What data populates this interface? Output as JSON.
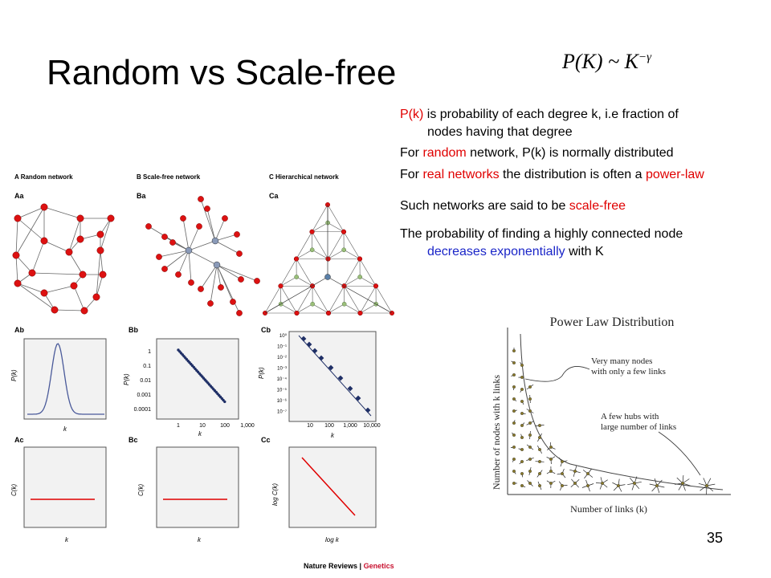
{
  "slide": {
    "title": "Random vs Scale-free",
    "formula": {
      "lhs": "P(K) ~ K",
      "exp": "−γ"
    },
    "page_number": "35"
  },
  "bullets": {
    "b1_red": "P(k)",
    "b1_rest": " is probability of each degree k, i.e fraction of",
    "b1_cont": "nodes having that degree",
    "b2_pre": "For ",
    "b2_red": "random",
    "b2_post": " network, P(k) is normally distributed",
    "b3_pre": "For ",
    "b3_red": "real networks",
    "b3_mid": " the distribution is often a ",
    "b3_red2": "power-law",
    "b4_pre": "Such networks are said to be ",
    "b4_red": "scale-free",
    "b5_pre": "The probability of finding a highly connected node",
    "b5_blue": "decreases exponentially",
    "b5_post": " with K"
  },
  "figure": {
    "col_a": "A  Random network",
    "col_b": "B  Scale-free network",
    "col_c": "C  Hierarchical network",
    "panels": {
      "aa": "Aa",
      "ba": "Ba",
      "ca": "Ca",
      "ab": "Ab",
      "bb": "Bb",
      "cb": "Cb",
      "ac": "Ac",
      "bc": "Bc",
      "cc": "Cc"
    },
    "axes": {
      "k": "k",
      "pk": "P(k)",
      "ck": "C(k)",
      "logck": "log C(k)",
      "logk": "log k"
    },
    "bb_yticks": [
      "1",
      "0.1",
      "0.01",
      "0.001",
      "0.0001"
    ],
    "bb_xticks": [
      "1",
      "10",
      "100",
      "1,000"
    ],
    "cb_yticks": [
      "10⁰",
      "10⁻¹",
      "10⁻²",
      "10⁻³",
      "10⁻⁴",
      "10⁻⁵",
      "10⁻⁶",
      "10⁻⁷"
    ],
    "cb_xticks": [
      "10",
      "100",
      "1,000",
      "10,000"
    ],
    "credit_a": "Nature Reviews | ",
    "credit_b": "Genetics"
  },
  "power_law": {
    "title": "Power Law Distribution",
    "ylabel": "Number of nodes with k links",
    "xlabel": "Number of links (k)",
    "note1_l1": "Very many nodes",
    "note1_l2": "with only a few links",
    "note2_l1": "A few hubs with",
    "note2_l2": "large number of links"
  },
  "colors": {
    "red_node": "#dd1111",
    "blue_dot": "#1f2f66",
    "highlight_red": "#e00000",
    "highlight_blue": "#1a25c8",
    "credit_red": "#c8102e"
  }
}
